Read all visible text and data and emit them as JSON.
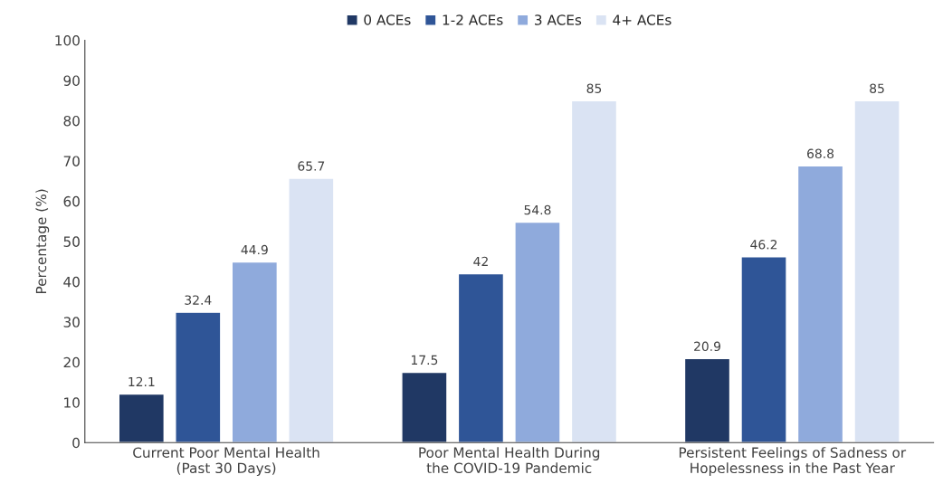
{
  "chart_data": {
    "type": "bar",
    "ylabel": "Percentage (%)",
    "categories": [
      "Current Poor Mental Health\n(Past 30 Days)",
      "Poor Mental Health During\nthe COVID-19 Pandemic",
      "Persistent Feelings of Sadness or\nHopelessness in the Past Year"
    ],
    "series": [
      {
        "name": "0 ACEs",
        "color": "#203864",
        "values": [
          12.1,
          17.5,
          20.9
        ]
      },
      {
        "name": "1-2 ACEs",
        "color": "#2f5597",
        "values": [
          32.4,
          42,
          46.2
        ]
      },
      {
        "name": "3 ACEs",
        "color": "#8faadc",
        "values": [
          44.9,
          54.8,
          68.8
        ]
      },
      {
        "name": "4+ ACEs",
        "color": "#dae3f3",
        "values": [
          65.7,
          85,
          85
        ]
      }
    ],
    "ylim": [
      0,
      100
    ],
    "yticks": [
      0,
      10,
      20,
      30,
      40,
      50,
      60,
      70,
      80,
      90,
      100
    ],
    "grid": false,
    "legend": "top",
    "data_labels": true
  }
}
